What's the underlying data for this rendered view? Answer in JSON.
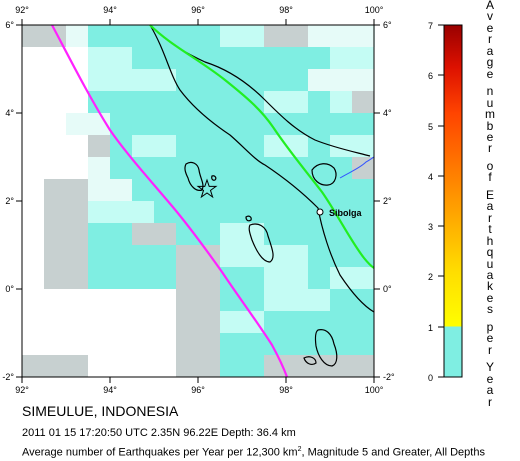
{
  "map": {
    "lon_ticks": [
      "92°",
      "94°",
      "96°",
      "98°",
      "100°"
    ],
    "lat_ticks": [
      "6°",
      "4°",
      "2°",
      "0°",
      "-2°"
    ],
    "city_label": "Sibolga",
    "colors": {
      "cell_dark": "#c7d0d0",
      "cell_cyan": "#7feee2",
      "cell_cyan_light": "#c4fcf4",
      "cell_pale": "#e6fbf8",
      "trench_line": "#ff22ff",
      "fault_line": "#22ee22",
      "coast_line": "#000000",
      "river_line": "#3355ff"
    }
  },
  "legend": {
    "title_letters": [
      "A",
      "v",
      "e",
      "r",
      "a",
      "g",
      "e",
      " ",
      "n",
      "u",
      "m",
      "b",
      "e",
      "r",
      " ",
      "o",
      "f",
      " ",
      "E",
      "a",
      "r",
      "t",
      "h",
      "q",
      "u",
      "a",
      "k",
      "e",
      "s",
      " ",
      "p",
      "e",
      "r",
      " ",
      "Y",
      "e",
      "a",
      "r"
    ],
    "ticks": [
      "7",
      "6",
      "5",
      "4",
      "3",
      "2",
      "1",
      "0"
    ],
    "color_stops": [
      "#7feee2",
      "#ffff00",
      "#ffcc00",
      "#ff9900",
      "#ff6600",
      "#ff3300",
      "#dd0000",
      "#990000"
    ]
  },
  "caption": {
    "title": "SIMEULUE, INDONESIA",
    "event": "2011 01 15 17:20:50 UTC 2.35N 96.22E Depth: 36.4 km",
    "line3_pre": "Average number of Earthquakes per Year per 12,300 km",
    "line3_sup": "2",
    "line3_post": ", Magnitude 5 and Greater, All Depths"
  }
}
